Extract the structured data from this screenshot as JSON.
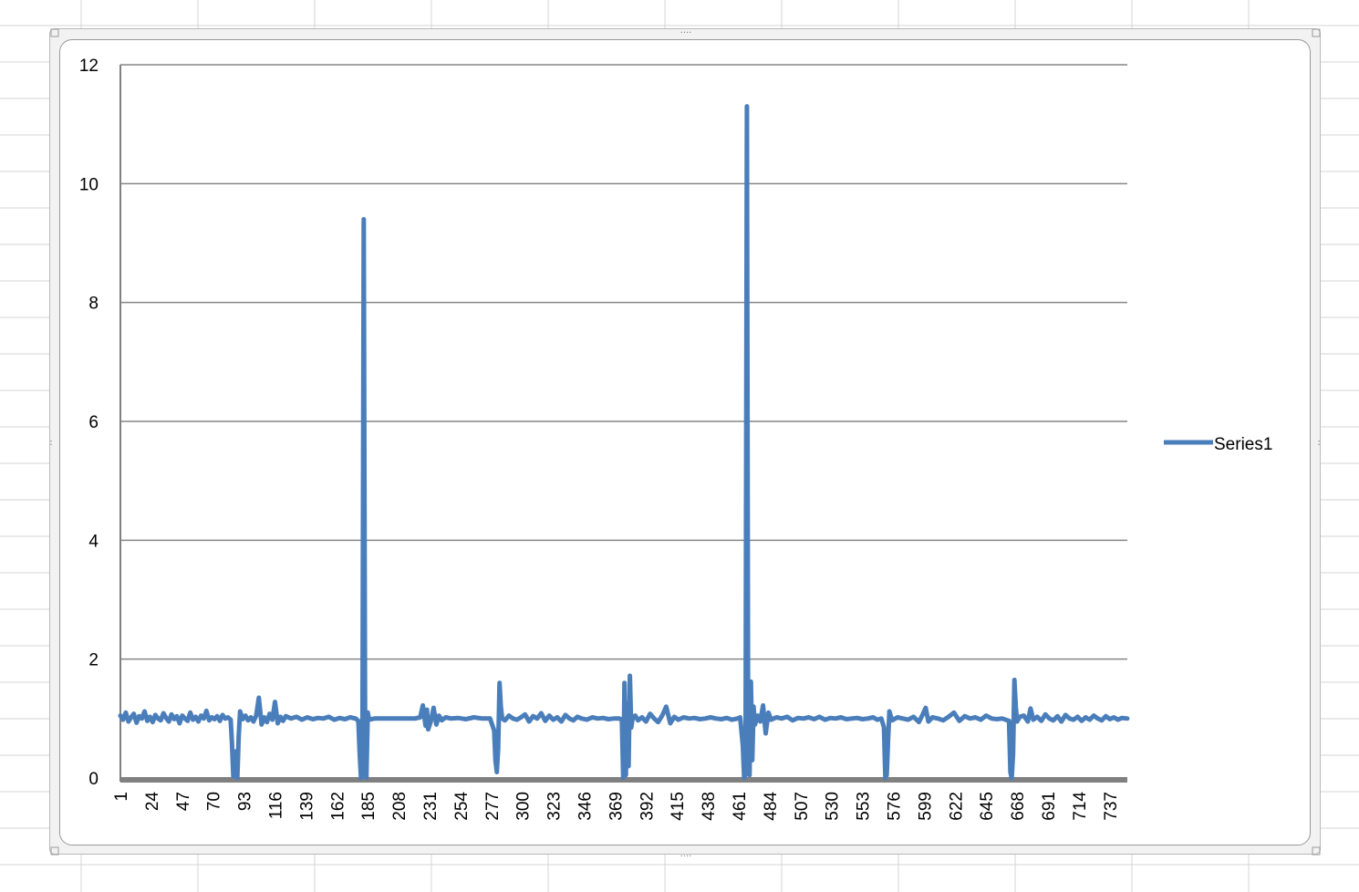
{
  "colors": {
    "series": "#4a7ebb",
    "gridline": "#868686",
    "axis": "#808080",
    "frame": "#b9b9b9",
    "cell_grid": "#d4d4d4"
  },
  "legend": {
    "label": "Series1",
    "position": "right"
  },
  "chart_data": {
    "type": "line",
    "title": "",
    "xlabel": "",
    "ylabel": "",
    "ylim": [
      0,
      12
    ],
    "y_ticks": [
      0,
      2,
      4,
      6,
      8,
      10,
      12
    ],
    "grid": true,
    "x_range": [
      1,
      750
    ],
    "x_tick_labels": [
      "1",
      "24",
      "47",
      "70",
      "93",
      "116",
      "139",
      "162",
      "185",
      "208",
      "231",
      "254",
      "277",
      "300",
      "323",
      "346",
      "369",
      "392",
      "415",
      "438",
      "461",
      "484",
      "507",
      "530",
      "553",
      "576",
      "599",
      "622",
      "645",
      "668",
      "691",
      "714",
      "737"
    ],
    "baseline": 1.0,
    "series": [
      {
        "name": "Series1",
        "points": [
          [
            1,
            1.05
          ],
          [
            3,
            0.98
          ],
          [
            5,
            1.1
          ],
          [
            7,
            0.95
          ],
          [
            9,
            1.02
          ],
          [
            11,
            1.08
          ],
          [
            13,
            0.93
          ],
          [
            15,
            1.04
          ],
          [
            17,
            1.0
          ],
          [
            19,
            1.12
          ],
          [
            21,
            0.96
          ],
          [
            23,
            1.03
          ],
          [
            25,
            0.94
          ],
          [
            27,
            1.06
          ],
          [
            29,
            1.0
          ],
          [
            31,
            0.97
          ],
          [
            33,
            1.09
          ],
          [
            35,
            1.01
          ],
          [
            37,
            0.95
          ],
          [
            39,
            1.07
          ],
          [
            41,
            0.99
          ],
          [
            43,
            1.04
          ],
          [
            45,
            0.92
          ],
          [
            47,
            1.05
          ],
          [
            49,
            1.0
          ],
          [
            51,
            0.96
          ],
          [
            53,
            1.1
          ],
          [
            55,
            0.98
          ],
          [
            57,
            1.03
          ],
          [
            59,
            0.95
          ],
          [
            61,
            1.05
          ],
          [
            63,
            1.0
          ],
          [
            65,
            1.13
          ],
          [
            67,
            0.97
          ],
          [
            69,
            1.02
          ],
          [
            71,
            0.99
          ],
          [
            73,
            1.04
          ],
          [
            75,
            0.96
          ],
          [
            77,
            1.06
          ],
          [
            79,
            1.0
          ],
          [
            81,
            1.02
          ],
          [
            83,
            0.98
          ],
          [
            84,
            0.6
          ],
          [
            85,
            0.03
          ],
          [
            86,
            0.08
          ],
          [
            87,
            0.45
          ],
          [
            88,
            0.0
          ],
          [
            89,
            0.7
          ],
          [
            90,
            1.12
          ],
          [
            92,
            0.99
          ],
          [
            94,
            1.05
          ],
          [
            96,
            0.97
          ],
          [
            98,
            1.02
          ],
          [
            100,
            0.95
          ],
          [
            102,
            1.05
          ],
          [
            104,
            1.35
          ],
          [
            106,
            0.9
          ],
          [
            108,
            1.02
          ],
          [
            110,
            0.94
          ],
          [
            112,
            1.08
          ],
          [
            114,
            0.98
          ],
          [
            116,
            1.28
          ],
          [
            118,
            0.92
          ],
          [
            120,
            1.03
          ],
          [
            122,
            0.96
          ],
          [
            124,
            1.04
          ],
          [
            128,
            1.0
          ],
          [
            132,
            1.03
          ],
          [
            136,
            0.98
          ],
          [
            140,
            1.02
          ],
          [
            144,
            0.99
          ],
          [
            148,
            1.01
          ],
          [
            152,
            1.0
          ],
          [
            156,
            1.03
          ],
          [
            160,
            0.98
          ],
          [
            164,
            1.01
          ],
          [
            168,
            0.99
          ],
          [
            172,
            1.02
          ],
          [
            176,
            1.0
          ],
          [
            178,
            0.96
          ],
          [
            179,
            0.4
          ],
          [
            180,
            0.0
          ],
          [
            181,
            0.05
          ],
          [
            182,
            9.4
          ],
          [
            183,
            0.8
          ],
          [
            184,
            0.0
          ],
          [
            185,
            1.1
          ],
          [
            186,
            0.98
          ],
          [
            190,
            1.0
          ],
          [
            200,
            1.0
          ],
          [
            210,
            1.0
          ],
          [
            220,
            1.0
          ],
          [
            224,
            1.02
          ],
          [
            226,
            1.22
          ],
          [
            228,
            0.88
          ],
          [
            229,
            1.15
          ],
          [
            230,
            0.82
          ],
          [
            232,
            0.96
          ],
          [
            234,
            1.18
          ],
          [
            236,
            0.9
          ],
          [
            238,
            1.05
          ],
          [
            240,
            0.97
          ],
          [
            243,
            1.02
          ],
          [
            247,
            1.0
          ],
          [
            252,
            1.01
          ],
          [
            258,
            0.99
          ],
          [
            264,
            1.02
          ],
          [
            270,
            1.0
          ],
          [
            276,
            1.0
          ],
          [
            279,
            0.8
          ],
          [
            280,
            0.3
          ],
          [
            281,
            0.1
          ],
          [
            282,
            0.5
          ],
          [
            283,
            1.6
          ],
          [
            284,
            1.2
          ],
          [
            285,
            1.0
          ],
          [
            287,
            0.97
          ],
          [
            290,
            1.05
          ],
          [
            293,
            1.0
          ],
          [
            296,
            0.98
          ],
          [
            299,
            1.02
          ],
          [
            302,
            1.07
          ],
          [
            305,
            0.95
          ],
          [
            308,
            1.04
          ],
          [
            311,
            1.0
          ],
          [
            314,
            1.09
          ],
          [
            317,
            0.96
          ],
          [
            320,
            1.05
          ],
          [
            323,
            0.98
          ],
          [
            326,
            1.02
          ],
          [
            329,
            0.95
          ],
          [
            332,
            1.06
          ],
          [
            335,
            1.0
          ],
          [
            338,
            0.97
          ],
          [
            341,
            1.03
          ],
          [
            344,
            1.0
          ],
          [
            348,
            0.98
          ],
          [
            352,
            1.02
          ],
          [
            356,
            1.0
          ],
          [
            360,
            1.01
          ],
          [
            364,
            0.99
          ],
          [
            368,
            1.0
          ],
          [
            372,
            1.0
          ],
          [
            374,
            0.98
          ],
          [
            375,
            0.0
          ],
          [
            376,
            1.6
          ],
          [
            377,
            0.05
          ],
          [
            378,
            1.25
          ],
          [
            379,
            0.2
          ],
          [
            380,
            1.72
          ],
          [
            381,
            0.85
          ],
          [
            382,
            1.0
          ],
          [
            384,
            1.05
          ],
          [
            386,
            0.97
          ],
          [
            389,
            1.02
          ],
          [
            392,
            0.95
          ],
          [
            395,
            1.08
          ],
          [
            398,
            1.0
          ],
          [
            401,
            0.94
          ],
          [
            404,
            1.05
          ],
          [
            407,
            1.2
          ],
          [
            410,
            0.92
          ],
          [
            413,
            1.03
          ],
          [
            416,
            0.98
          ],
          [
            420,
            1.02
          ],
          [
            424,
            1.0
          ],
          [
            428,
            1.01
          ],
          [
            432,
            0.99
          ],
          [
            436,
            1.0
          ],
          [
            440,
            1.02
          ],
          [
            444,
            1.0
          ],
          [
            448,
            0.99
          ],
          [
            452,
            1.01
          ],
          [
            456,
            0.98
          ],
          [
            460,
            1.0
          ],
          [
            462,
            1.02
          ],
          [
            464,
            0.55
          ],
          [
            465,
            0.0
          ],
          [
            466,
            0.05
          ],
          [
            467,
            11.3
          ],
          [
            468,
            0.4
          ],
          [
            469,
            0.05
          ],
          [
            470,
            1.62
          ],
          [
            471,
            0.3
          ],
          [
            472,
            1.2
          ],
          [
            473,
            0.9
          ],
          [
            475,
            1.05
          ],
          [
            477,
            0.95
          ],
          [
            479,
            1.22
          ],
          [
            481,
            0.75
          ],
          [
            483,
            1.1
          ],
          [
            485,
            0.98
          ],
          [
            489,
            1.02
          ],
          [
            493,
            1.0
          ],
          [
            497,
            1.03
          ],
          [
            501,
            0.97
          ],
          [
            505,
            1.01
          ],
          [
            509,
            1.0
          ],
          [
            513,
            1.02
          ],
          [
            517,
            0.99
          ],
          [
            521,
            1.03
          ],
          [
            525,
            0.98
          ],
          [
            529,
            1.01
          ],
          [
            533,
            1.0
          ],
          [
            537,
            1.02
          ],
          [
            541,
            0.99
          ],
          [
            545,
            1.0
          ],
          [
            549,
            1.01
          ],
          [
            553,
            0.99
          ],
          [
            557,
            1.0
          ],
          [
            561,
            1.02
          ],
          [
            564,
            0.98
          ],
          [
            567,
            1.0
          ],
          [
            569,
            0.85
          ],
          [
            570,
            0.0
          ],
          [
            571,
            0.05
          ],
          [
            572,
            0.6
          ],
          [
            573,
            1.12
          ],
          [
            575,
            0.97
          ],
          [
            579,
            1.02
          ],
          [
            583,
            1.0
          ],
          [
            587,
            0.98
          ],
          [
            591,
            1.03
          ],
          [
            595,
            0.94
          ],
          [
            598,
            1.08
          ],
          [
            600,
            1.18
          ],
          [
            602,
            0.95
          ],
          [
            605,
            1.02
          ],
          [
            609,
            1.0
          ],
          [
            613,
            0.97
          ],
          [
            617,
            1.03
          ],
          [
            621,
            1.1
          ],
          [
            625,
            0.96
          ],
          [
            629,
            1.04
          ],
          [
            633,
            1.0
          ],
          [
            637,
            1.02
          ],
          [
            641,
            0.98
          ],
          [
            645,
            1.05
          ],
          [
            649,
            1.0
          ],
          [
            653,
            0.99
          ],
          [
            657,
            1.0
          ],
          [
            662,
            0.96
          ],
          [
            663,
            0.1
          ],
          [
            664,
            0.0
          ],
          [
            665,
            0.4
          ],
          [
            666,
            1.65
          ],
          [
            667,
            1.2
          ],
          [
            668,
            0.95
          ],
          [
            670,
            1.03
          ],
          [
            673,
            1.05
          ],
          [
            676,
            0.95
          ],
          [
            678,
            1.17
          ],
          [
            680,
            0.98
          ],
          [
            683,
            1.03
          ],
          [
            686,
            0.96
          ],
          [
            689,
            1.07
          ],
          [
            692,
            1.0
          ],
          [
            695,
            0.97
          ],
          [
            698,
            1.04
          ],
          [
            701,
            0.95
          ],
          [
            704,
            1.06
          ],
          [
            707,
            1.0
          ],
          [
            710,
            0.98
          ],
          [
            713,
            1.03
          ],
          [
            716,
            0.96
          ],
          [
            719,
            1.02
          ],
          [
            722,
            0.98
          ],
          [
            725,
            1.05
          ],
          [
            728,
            1.0
          ],
          [
            731,
            0.97
          ],
          [
            734,
            1.04
          ],
          [
            737,
            0.99
          ],
          [
            740,
            1.02
          ],
          [
            743,
            0.98
          ],
          [
            746,
            1.01
          ],
          [
            750,
            1.0
          ]
        ]
      }
    ]
  }
}
